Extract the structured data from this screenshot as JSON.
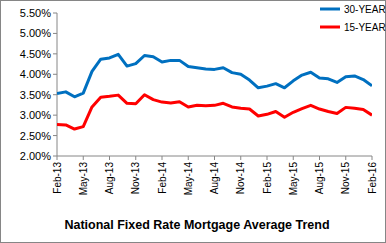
{
  "chart_data": {
    "type": "line",
    "title": "National Fixed Rate Mortgage Average Trend",
    "categories": [
      "Feb-13",
      null,
      null,
      "May-13",
      null,
      null,
      "Aug-13",
      null,
      null,
      "Nov-13",
      null,
      null,
      "Feb-14",
      null,
      null,
      "May-14",
      null,
      null,
      "Aug-14",
      null,
      null,
      "Nov-14",
      null,
      null,
      "Feb-15",
      null,
      null,
      "May-15",
      null,
      null,
      "Aug-15",
      null,
      null,
      "Nov-15",
      null,
      null,
      "Feb-16"
    ],
    "series": [
      {
        "name": "30-YEAR",
        "color": "#0070c0",
        "values": [
          3.53,
          3.57,
          3.45,
          3.54,
          4.07,
          4.37,
          4.4,
          4.49,
          4.2,
          4.26,
          4.46,
          4.43,
          4.3,
          4.34,
          4.34,
          4.19,
          4.16,
          4.13,
          4.12,
          4.16,
          4.04,
          4.0,
          3.86,
          3.67,
          3.71,
          3.77,
          3.67,
          3.84,
          3.98,
          4.05,
          3.91,
          3.89,
          3.8,
          3.94,
          3.96,
          3.87,
          3.72
        ]
      },
      {
        "name": "15-YEAR",
        "color": "#ff0000",
        "values": [
          2.77,
          2.76,
          2.66,
          2.72,
          3.2,
          3.44,
          3.46,
          3.49,
          3.29,
          3.28,
          3.5,
          3.38,
          3.32,
          3.3,
          3.33,
          3.2,
          3.24,
          3.23,
          3.24,
          3.29,
          3.2,
          3.17,
          3.15,
          2.98,
          3.02,
          3.09,
          2.95,
          3.07,
          3.16,
          3.24,
          3.15,
          3.09,
          3.04,
          3.19,
          3.17,
          3.14,
          3.0
        ]
      }
    ],
    "ylim": [
      2.0,
      5.5
    ],
    "yticks": [
      {
        "value": 2.0,
        "label": "2.00%"
      },
      {
        "value": 2.5,
        "label": "2.50%"
      },
      {
        "value": 3.0,
        "label": "3.00%"
      },
      {
        "value": 3.5,
        "label": "3.50%"
      },
      {
        "value": 4.0,
        "label": "4.00%"
      },
      {
        "value": 4.5,
        "label": "4.50%"
      },
      {
        "value": 5.0,
        "label": "5.00%"
      },
      {
        "value": 5.5,
        "label": "5.50%"
      }
    ],
    "grid": false,
    "legend": "top-right",
    "marker": "none",
    "line_style": "solid"
  }
}
